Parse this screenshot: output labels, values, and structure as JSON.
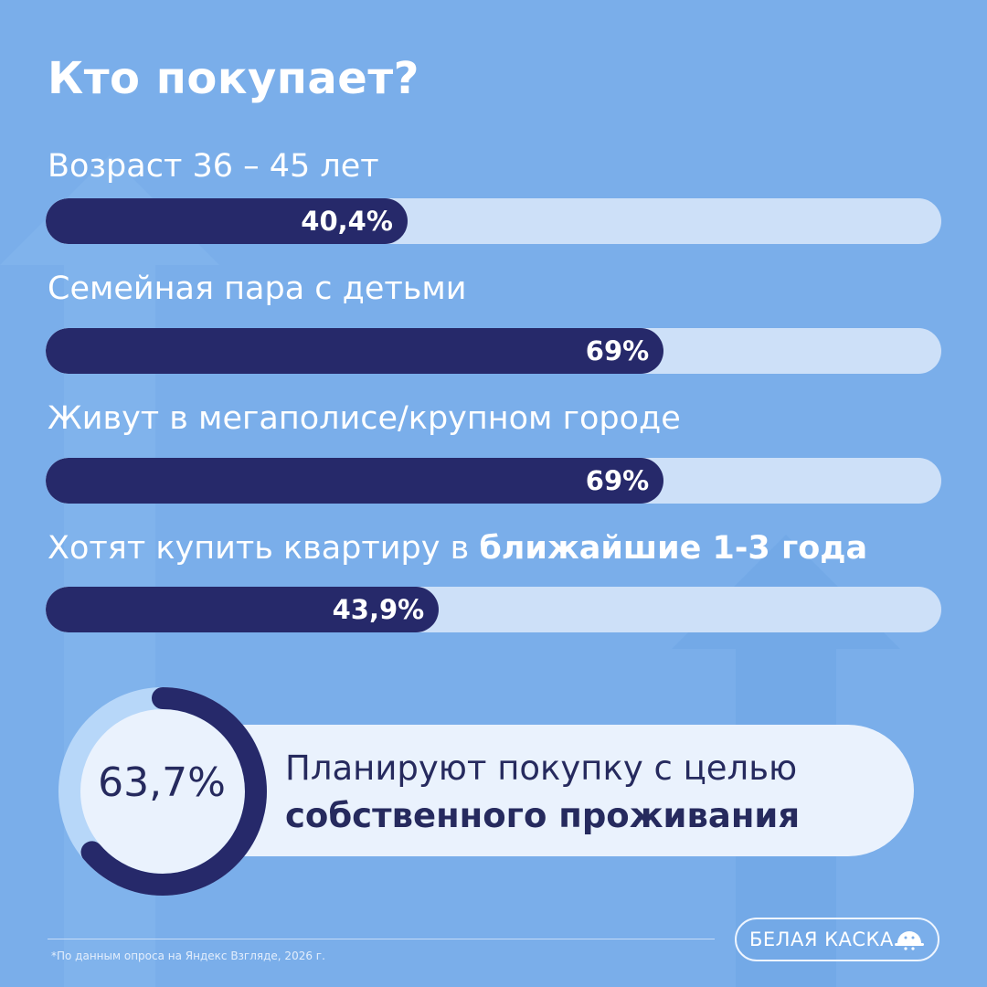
{
  "title": "Кто покупает?",
  "rows": [
    {
      "label": "Возраст 36 – 45 лет",
      "label_bold": "",
      "value": 40.4,
      "value_label": "40,4%"
    },
    {
      "label": "Семейная пара с детьми",
      "label_bold": "",
      "value": 69,
      "value_label": "69%"
    },
    {
      "label": "Живут в мегаполисе/крупном городе",
      "label_bold": "",
      "value": 69,
      "value_label": "69%"
    },
    {
      "label": "Хотят купить квартиру в ",
      "label_bold": "ближайшие 1-3 года",
      "value": 43.9,
      "value_label": "43,9%"
    }
  ],
  "highlight": {
    "value": 63.7,
    "value_label": "63,7%",
    "text_line1": "Планируют покупку с целью",
    "text_line2": "собственного проживания"
  },
  "footnote": "*По данным опроса на Яндекс Взгляде, 2026 г.",
  "brand": {
    "name": "БЕЛАЯ КАСКА",
    "icon": "hard-hat-icon"
  },
  "colors": {
    "background": "#7aaeea",
    "bar_fill": "#26296a",
    "bar_track": "#cde0f8",
    "ring": "#26296a",
    "ring_track": "#b7d7f9"
  },
  "chart_data": {
    "type": "bar",
    "orientation": "horizontal",
    "title": "Кто покупает?",
    "categories": [
      "Возраст 36 – 45 лет",
      "Семейная пара с детьми",
      "Живут в мегаполисе/крупном городе",
      "Хотят купить квартиру в ближайшие 1-3 года"
    ],
    "values": [
      40.4,
      69,
      69,
      43.9
    ],
    "unit": "%",
    "xlim": [
      0,
      100
    ],
    "grid": false,
    "legend": "none"
  }
}
